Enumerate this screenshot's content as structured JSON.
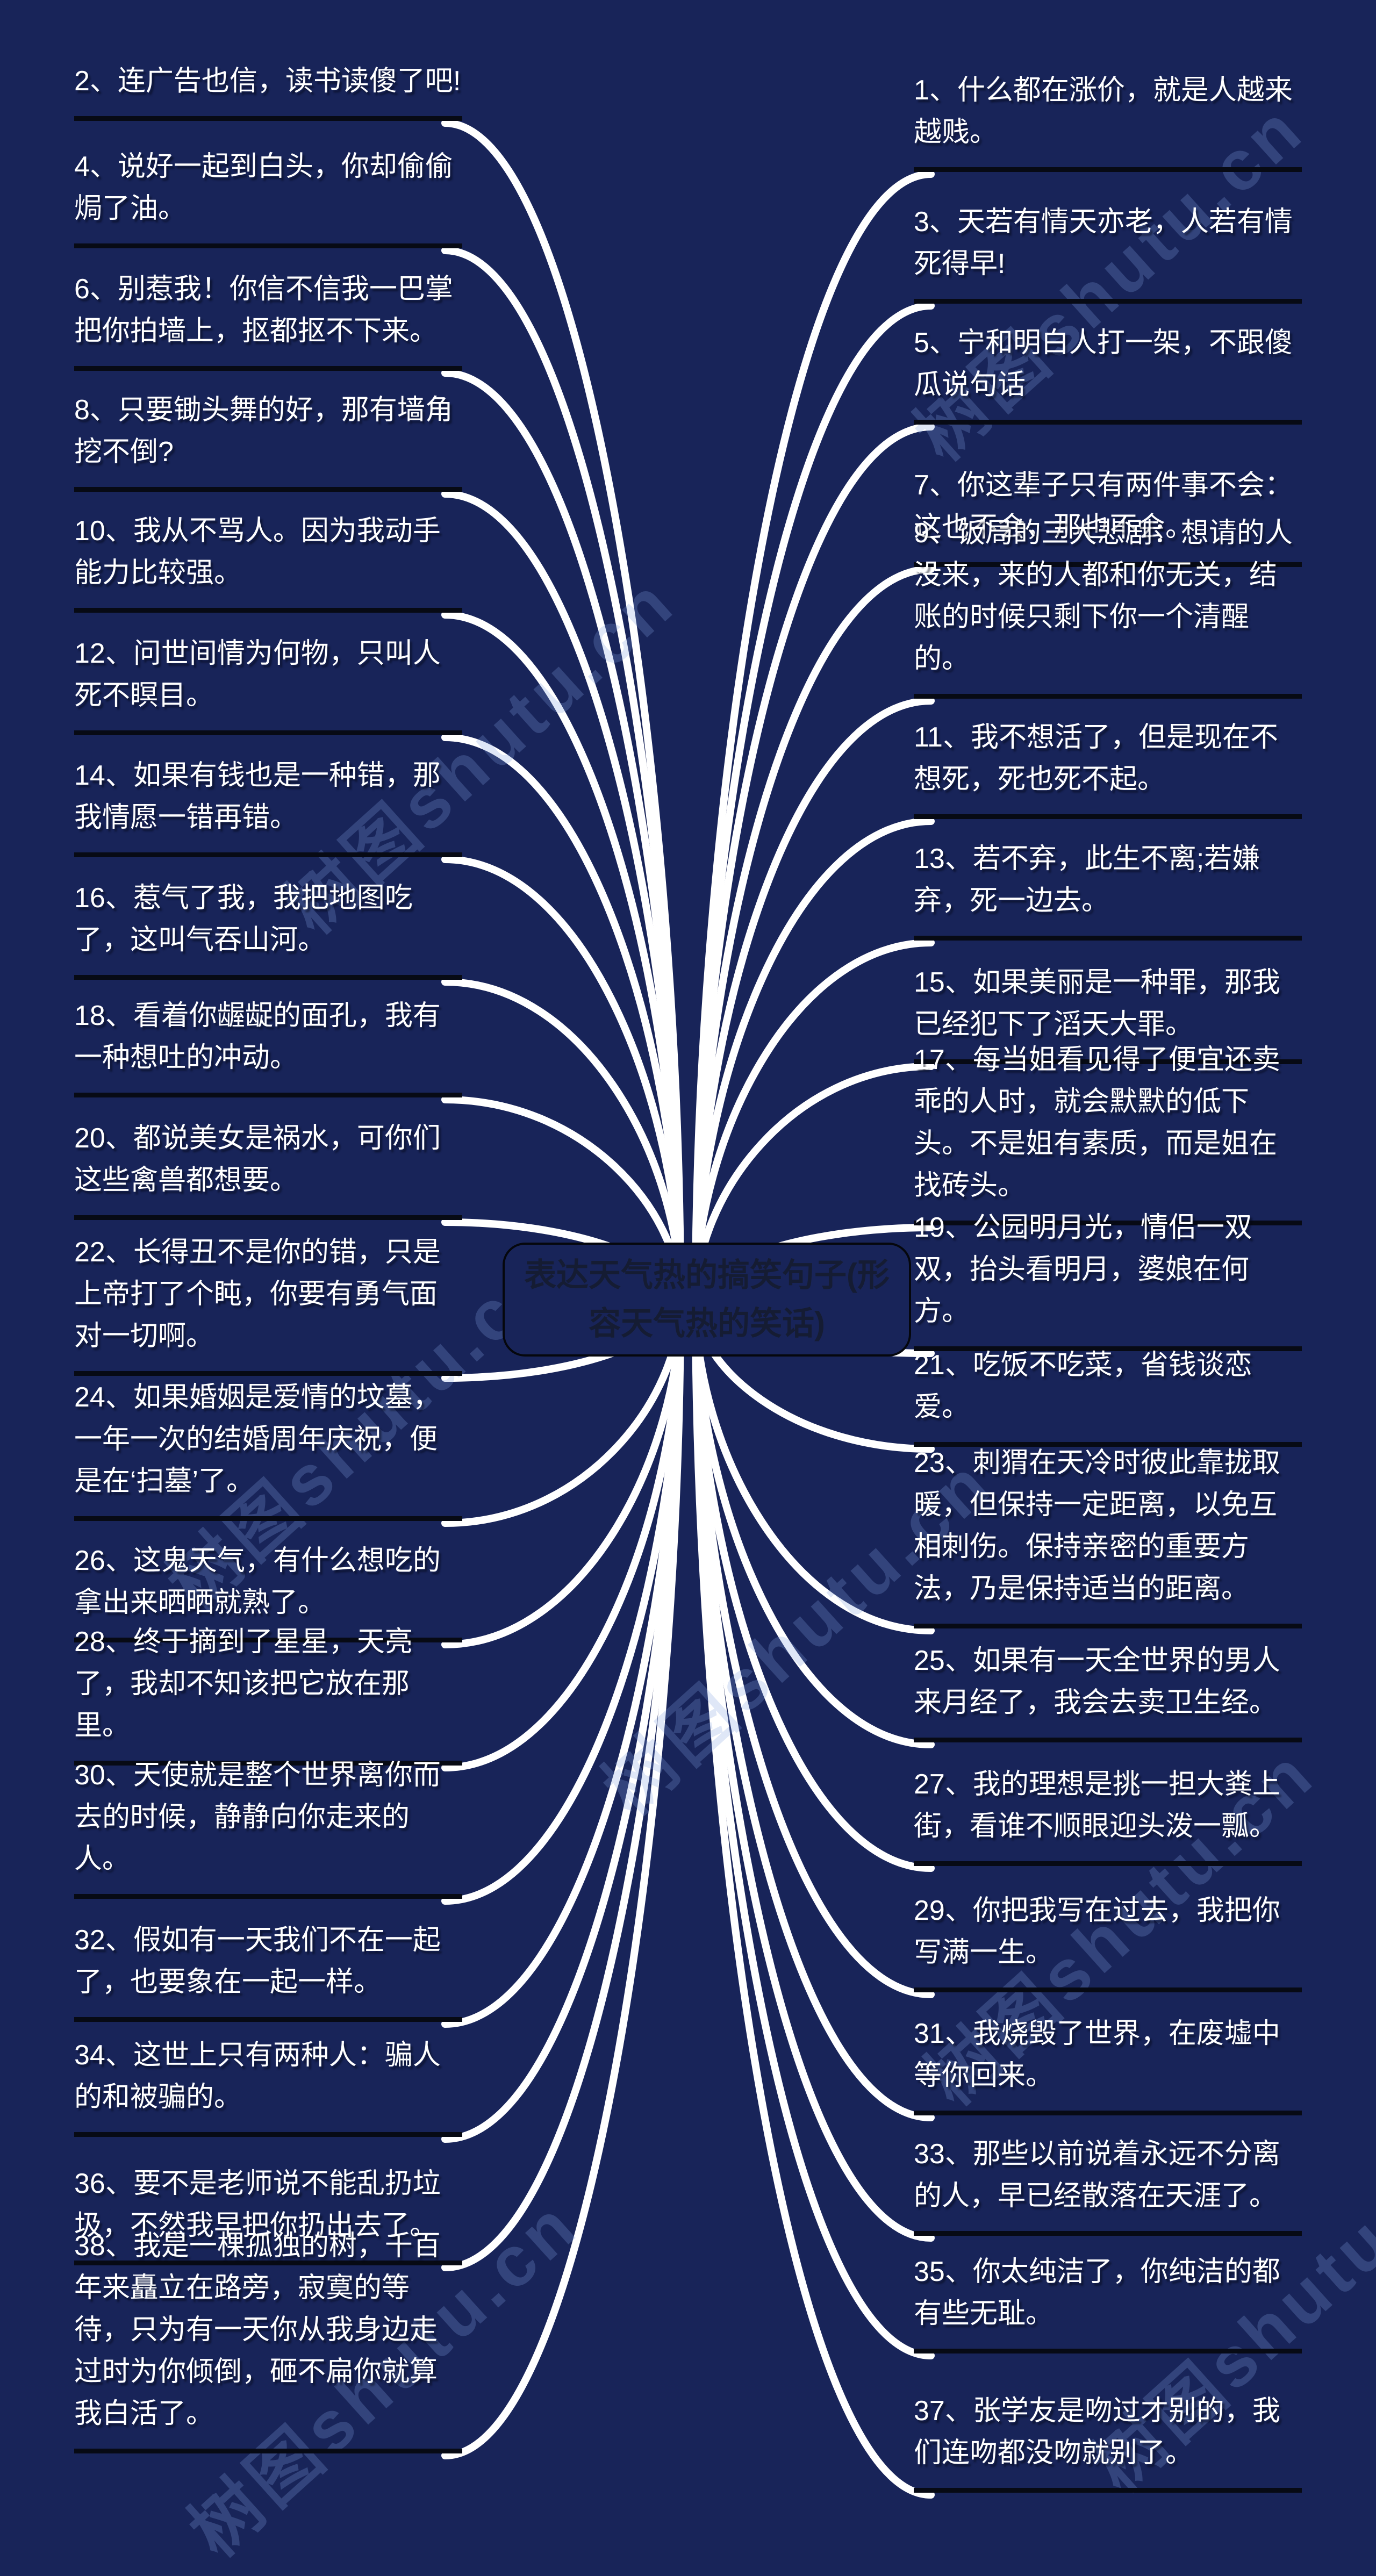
{
  "center": {
    "title": "表达天气热的搞笑句子(形容天气热的笑话)"
  },
  "watermark": {
    "text": "树图shutu.cn"
  },
  "colors": {
    "background": "#182459",
    "item_text": "#ffffff",
    "underline": "#070a14",
    "curve": "#ffffff",
    "center_border": "#05070d",
    "center_text": "#161c30",
    "watermark": "#84a2e2"
  },
  "left_items": [
    {
      "text": "2、连广告也信，读书读傻了吧!"
    },
    {
      "text": "4、说好一起到白头，你却偷偷焗了油。"
    },
    {
      "text": "6、别惹我！你信不信我一巴掌把你拍墙上，抠都抠不下来。"
    },
    {
      "text": "8、只要锄头舞的好，那有墙角挖不倒?"
    },
    {
      "text": "10、我从不骂人。因为我动手能力比较强。"
    },
    {
      "text": "12、问世间情为何物，只叫人死不瞑目。"
    },
    {
      "text": "14、如果有钱也是一种错，那我情愿一错再错。"
    },
    {
      "text": "16、惹气了我，我把地图吃了，这叫气吞山河。"
    },
    {
      "text": "18、看着你龌龊的面孔，我有一种想吐的冲动。"
    },
    {
      "text": "20、都说美女是祸水，可你们这些禽兽都想要。"
    },
    {
      "text": "22、长得丑不是你的错，只是上帝打了个盹，你要有勇气面对一切啊。"
    },
    {
      "text": "24、如果婚姻是爱情的坟墓，一年一次的结婚周年庆祝，便是在‘扫墓’了。"
    },
    {
      "text": "26、这鬼天气，有什么想吃的拿出来晒晒就熟了。"
    },
    {
      "text": "28、终于摘到了星星，天亮了，我却不知该把它放在那里。"
    },
    {
      "text": "30、天使就是整个世界离你而去的时候，静静向你走来的人。"
    },
    {
      "text": "32、假如有一天我们不在一起了，也要象在一起一样。"
    },
    {
      "text": "34、这世上只有两种人：骗人的和被骗的。"
    },
    {
      "text": "36、要不是老师说不能乱扔垃圾，不然我早把你扔出去了。"
    },
    {
      "text": "38、我是一棵孤独的树，千百年来矗立在路旁，寂寞的等待，只为有一天你从我身边走过时为你倾倒，砸不扁你就算我白活了。"
    }
  ],
  "right_items": [
    {
      "text": "1、什么都在涨价，就是人越来越贱。"
    },
    {
      "text": "3、天若有情天亦老，人若有情死得早!"
    },
    {
      "text": "5、宁和明白人打一架，不跟傻瓜说句话"
    },
    {
      "text": "7、你这辈子只有两件事不会：这也不会，那也不会。"
    },
    {
      "text": "9、饭局的三大悲剧：想请的人没来，来的人都和你无关，结账的时候只剩下你一个清醒的。"
    },
    {
      "text": "11、我不想活了，但是现在不想死，死也死不起。"
    },
    {
      "text": "13、若不弃，此生不离;若嫌弃，死一边去。"
    },
    {
      "text": "15、如果美丽是一种罪，那我已经犯下了滔天大罪。"
    },
    {
      "text": "17、每当姐看见得了便宜还卖乖的人时，就会默默的低下头。不是姐有素质，而是姐在找砖头。"
    },
    {
      "text": "19、公园明月光，情侣一双双，抬头看明月，婆娘在何方。"
    },
    {
      "text": "21、吃饭不吃菜，省钱谈恋爱。"
    },
    {
      "text": "23、刺猬在天冷时彼此靠拢取暖，但保持一定距离，以免互相刺伤。保持亲密的重要方法，乃是保持适当的距离。"
    },
    {
      "text": "25、如果有一天全世界的男人来月经了，我会去卖卫生经。"
    },
    {
      "text": "27、我的理想是挑一担大粪上街，看谁不顺眼迎头泼一瓢。"
    },
    {
      "text": "29、你把我写在过去，我把你写满一生。"
    },
    {
      "text": "31、我烧毁了世界，在废墟中等你回来。"
    },
    {
      "text": "33、那些以前说着永远不分离的人，早已经散落在天涯了。"
    },
    {
      "text": "35、你太纯洁了，你纯洁的都有些无耻。"
    },
    {
      "text": "37、张学友是吻过才别的，我们连吻都没吻就别了。"
    }
  ]
}
